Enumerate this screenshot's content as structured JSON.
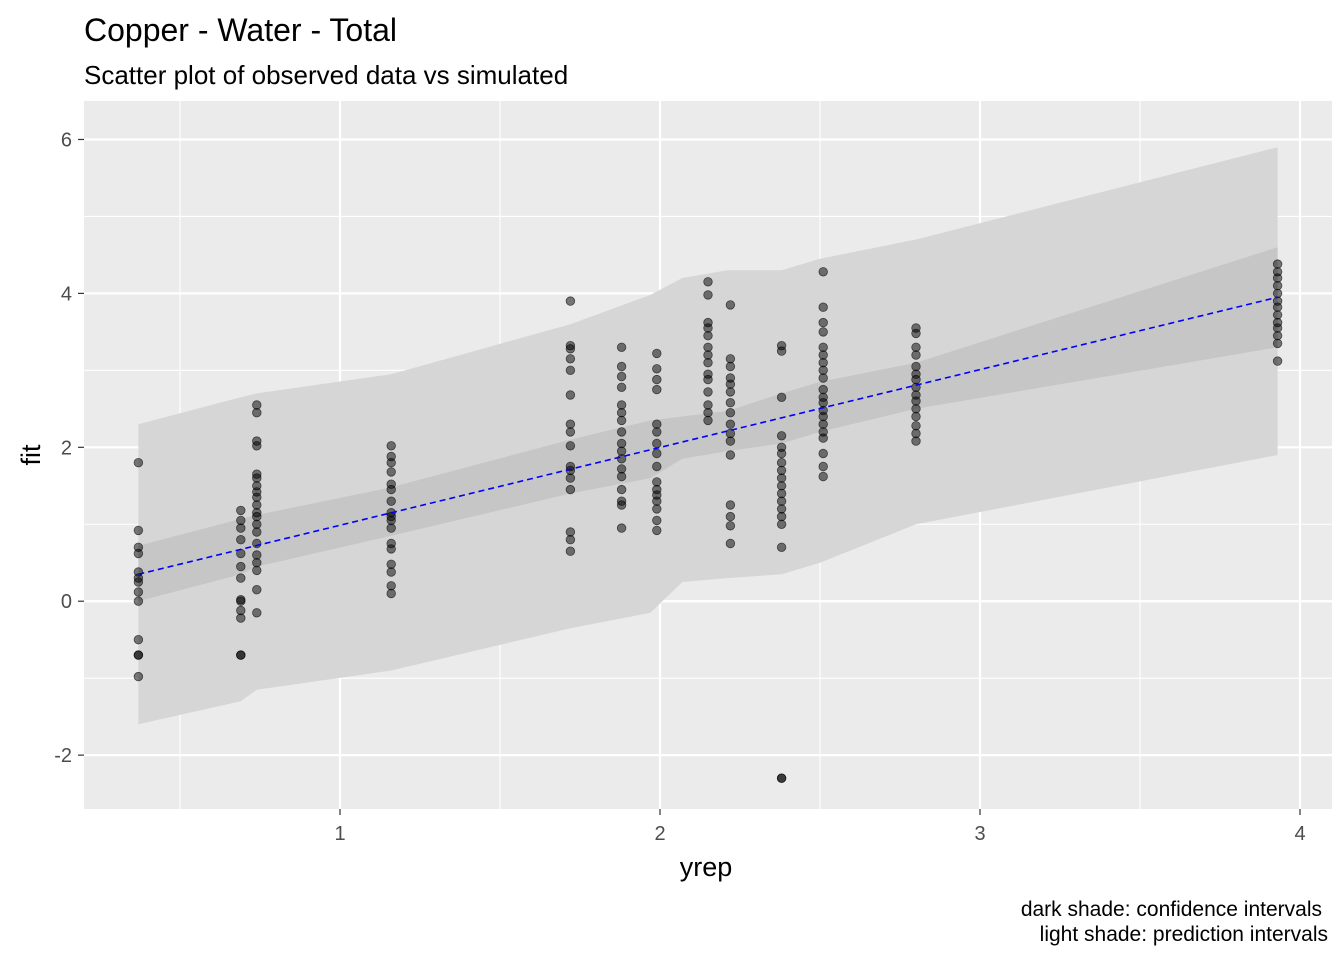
{
  "chart_data": {
    "type": "scatter",
    "title": "Copper - Water - Total",
    "subtitle": "Scatter plot of observed data vs simulated",
    "xlabel": "yrep",
    "ylabel": "fit",
    "xlim": [
      0.2,
      4.1
    ],
    "ylim": [
      -2.7,
      6.5
    ],
    "x_ticks": [
      1,
      2,
      3,
      4
    ],
    "y_ticks": [
      -2,
      0,
      2,
      4,
      6
    ],
    "x_tick_labels": [
      "1",
      "2",
      "3",
      "4"
    ],
    "y_tick_labels": [
      "-2",
      "0",
      "2",
      "4",
      "6"
    ],
    "grid": true,
    "caption": [
      "dark shade: confidence intervals",
      "light shade: prediction intervals"
    ],
    "colors": {
      "panel": "#ebebeb",
      "grid": "#ffffff",
      "prediction_band": "#d6d6d6",
      "confidence_band": "#c6c6c6",
      "fit_line": "#0000ff",
      "points": "#000000"
    },
    "fit_line": {
      "style": "dashed",
      "x": [
        0.37,
        3.93
      ],
      "y": [
        0.35,
        3.95
      ]
    },
    "prediction_band": {
      "x": [
        0.37,
        0.69,
        0.74,
        1.16,
        1.72,
        1.97,
        2.07,
        2.21,
        2.38,
        2.5,
        2.8,
        3.93
      ],
      "lower": [
        -1.6,
        -1.3,
        -1.15,
        -0.9,
        -0.35,
        -0.15,
        0.25,
        0.3,
        0.35,
        0.5,
        1.0,
        1.9
      ],
      "upper": [
        2.3,
        2.65,
        2.7,
        2.95,
        3.6,
        3.98,
        4.2,
        4.3,
        4.3,
        4.45,
        4.7,
        5.9
      ]
    },
    "confidence_band": {
      "x": [
        0.37,
        0.69,
        0.74,
        1.16,
        1.72,
        1.97,
        2.07,
        2.21,
        2.38,
        2.5,
        2.8,
        3.93
      ],
      "lower": [
        0.0,
        0.35,
        0.45,
        0.85,
        1.4,
        1.6,
        1.85,
        1.95,
        2.05,
        2.2,
        2.5,
        3.3
      ],
      "upper": [
        0.72,
        1.07,
        1.12,
        1.48,
        2.1,
        2.35,
        2.4,
        2.47,
        2.7,
        2.85,
        3.1,
        4.6
      ]
    },
    "points": [
      {
        "x": 0.37,
        "y": [
          1.8,
          0.92,
          0.7,
          0.62,
          0.38,
          0.3,
          0.25,
          0.12,
          0.0,
          -0.5,
          -0.7,
          -0.7,
          -0.98
        ]
      },
      {
        "x": 0.69,
        "y": [
          1.18,
          1.05,
          0.95,
          0.8,
          0.62,
          0.45,
          0.3,
          0.02,
          0.0,
          -0.12,
          -0.22,
          -0.7,
          -0.7
        ]
      },
      {
        "x": 0.74,
        "y": [
          2.55,
          2.45,
          2.08,
          2.02,
          1.65,
          1.6,
          1.5,
          1.42,
          1.35,
          1.25,
          1.15,
          1.1,
          1.0,
          0.9,
          0.75,
          0.6,
          0.5,
          0.4,
          0.15,
          -0.15
        ]
      },
      {
        "x": 1.16,
        "y": [
          2.02,
          1.88,
          1.8,
          1.68,
          1.52,
          1.45,
          1.3,
          1.15,
          1.1,
          1.05,
          0.95,
          0.75,
          0.68,
          0.48,
          0.38,
          0.2,
          0.1
        ]
      },
      {
        "x": 1.72,
        "y": [
          3.9,
          3.32,
          3.28,
          3.15,
          3.0,
          2.68,
          2.3,
          2.2,
          2.02,
          1.75,
          1.7,
          1.6,
          1.45,
          0.9,
          0.8,
          0.65
        ]
      },
      {
        "x": 1.88,
        "y": [
          3.3,
          3.05,
          2.92,
          2.78,
          2.55,
          2.45,
          2.35,
          2.2,
          2.05,
          1.95,
          1.85,
          1.72,
          1.62,
          1.45,
          1.3,
          1.25,
          0.95
        ]
      },
      {
        "x": 1.99,
        "y": [
          3.22,
          3.02,
          2.88,
          2.75,
          2.3,
          2.2,
          2.05,
          1.92,
          1.75,
          1.55,
          1.45,
          1.38,
          1.3,
          1.2,
          1.05,
          0.92
        ]
      },
      {
        "x": 2.15,
        "y": [
          4.15,
          3.98,
          3.62,
          3.55,
          3.45,
          3.3,
          3.2,
          3.1,
          2.95,
          2.88,
          2.72,
          2.55,
          2.45,
          2.35
        ]
      },
      {
        "x": 2.22,
        "y": [
          3.85,
          3.15,
          3.05,
          2.9,
          2.82,
          2.72,
          2.58,
          2.45,
          2.3,
          2.18,
          2.08,
          1.9,
          1.25,
          1.1,
          0.98,
          0.75
        ]
      },
      {
        "x": 2.38,
        "y": [
          3.32,
          3.25,
          2.65,
          2.15,
          2.0,
          1.92,
          1.8,
          1.7,
          1.6,
          1.5,
          1.4,
          1.3,
          1.2,
          1.1,
          1.0,
          0.7,
          -2.3,
          -2.3
        ]
      },
      {
        "x": 2.51,
        "y": [
          4.28,
          3.82,
          3.62,
          3.5,
          3.3,
          3.2,
          3.1,
          3.0,
          2.9,
          2.75,
          2.65,
          2.58,
          2.48,
          2.4,
          2.3,
          2.2,
          2.12,
          1.92,
          1.75,
          1.62
        ]
      },
      {
        "x": 2.8,
        "y": [
          3.55,
          3.48,
          3.3,
          3.2,
          3.05,
          2.95,
          2.88,
          2.78,
          2.68,
          2.6,
          2.5,
          2.4,
          2.28,
          2.18,
          2.08
        ]
      },
      {
        "x": 3.93,
        "y": [
          4.38,
          4.28,
          4.2,
          4.1,
          4.0,
          3.9,
          3.82,
          3.72,
          3.62,
          3.55,
          3.45,
          3.35,
          3.12
        ]
      }
    ]
  }
}
